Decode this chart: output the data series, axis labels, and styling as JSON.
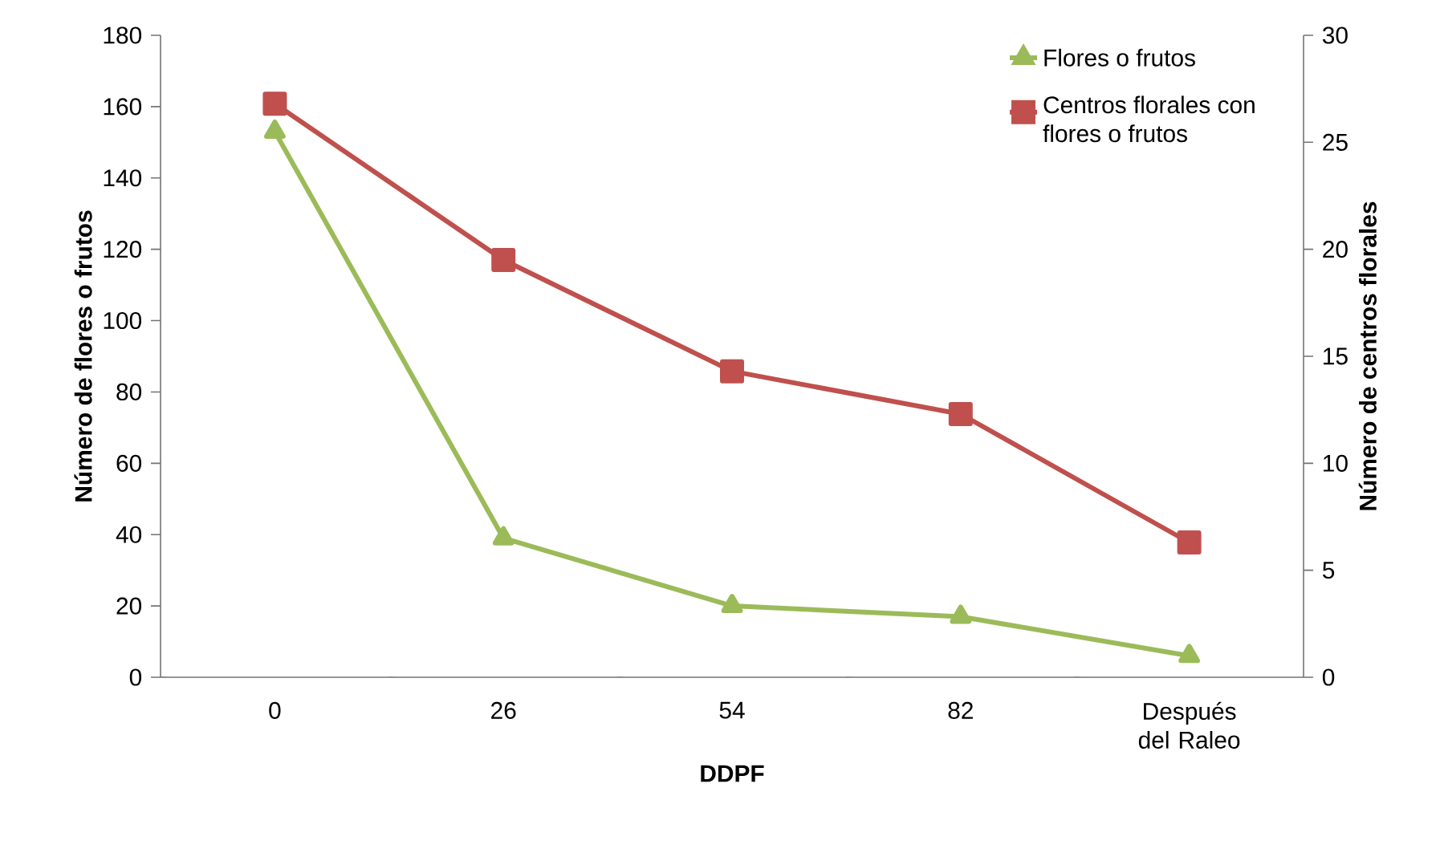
{
  "chart_data": {
    "type": "line",
    "categories": [
      "0",
      "26",
      "54",
      "82",
      "Después del Raleo"
    ],
    "xlabel": "DDPF",
    "ylabel": "Número de flores o frutos",
    "y2label": "Número de centros florales",
    "ylim": [
      0,
      180
    ],
    "yticks": [
      0,
      20,
      40,
      60,
      80,
      100,
      120,
      140,
      160,
      180
    ],
    "y2lim": [
      0,
      30
    ],
    "y2ticks": [
      0,
      5,
      10,
      15,
      20,
      25,
      30
    ],
    "legend": "top right",
    "grid": false,
    "series": [
      {
        "name": "Flores o frutos",
        "color": "#9bbb59",
        "marker": "triangle",
        "values": [
          153,
          39,
          20,
          17,
          6
        ]
      },
      {
        "name": "Centros florales con flores o frutos",
        "color": "#c0504d",
        "marker": "square",
        "axis": "y2",
        "values": [
          26.8,
          19.5,
          14.3,
          12.3,
          6.3
        ]
      }
    ]
  }
}
